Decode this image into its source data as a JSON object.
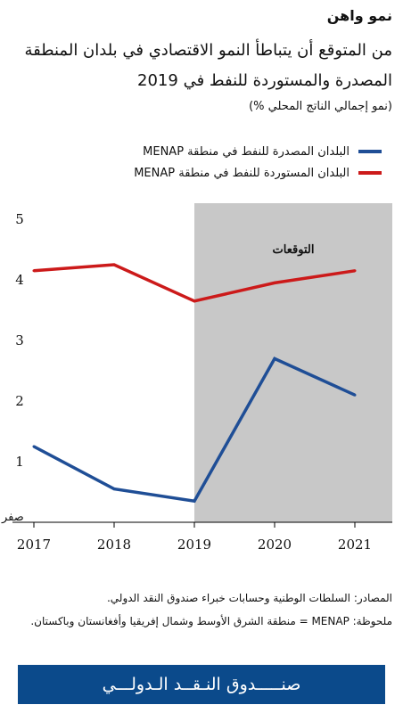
{
  "header": {
    "title": "نمو واهن",
    "subtitle": "من المتوقع أن يتباطأ النمو الاقتصادي في بلدان المنطقة المصدرة والمستوردة للنفط في 2019",
    "units": "(نمو إجمالي الناتج المحلي %)"
  },
  "notes": {
    "sources": "المصادر: السلطات الوطنية وحسابات خبراء صندوق النقد الدولي.",
    "note": "ملحوظة: MENAP = منطقة الشرق الأوسط وشمال إفريقيا وأفغانستان وباكستان."
  },
  "footer": {
    "brand": "صنـــــدوق النـقــد الـدولـــي"
  },
  "colors": {
    "exporters": "#1f4e96",
    "importers": "#cc1a1a",
    "forecast_band": "#c8c8c8",
    "brand": "#0b4a8b"
  },
  "chart_data": {
    "type": "line",
    "x": [
      2017,
      2018,
      2019,
      2020,
      2021
    ],
    "x_tick_labels": [
      "2017",
      "2018",
      "2019",
      "2020",
      "2021"
    ],
    "y_tick_labels": [
      "صفر",
      "1",
      "2",
      "3",
      "4",
      "5"
    ],
    "ylim": [
      0,
      5
    ],
    "forecast_region": {
      "from": 2019,
      "to": 2021,
      "label": "التوقعات"
    },
    "grid": false,
    "legend_position": "top",
    "series": [
      {
        "name": "البلدان المصدرة للنفط في منطقة MENAP",
        "color": "#1f4e96",
        "values": [
          1.25,
          0.55,
          0.35,
          2.7,
          2.1
        ]
      },
      {
        "name": "البلدان المستوردة للنفط في منطقة MENAP",
        "color": "#cc1a1a",
        "values": [
          4.15,
          4.25,
          3.65,
          3.95,
          4.15
        ]
      }
    ]
  }
}
